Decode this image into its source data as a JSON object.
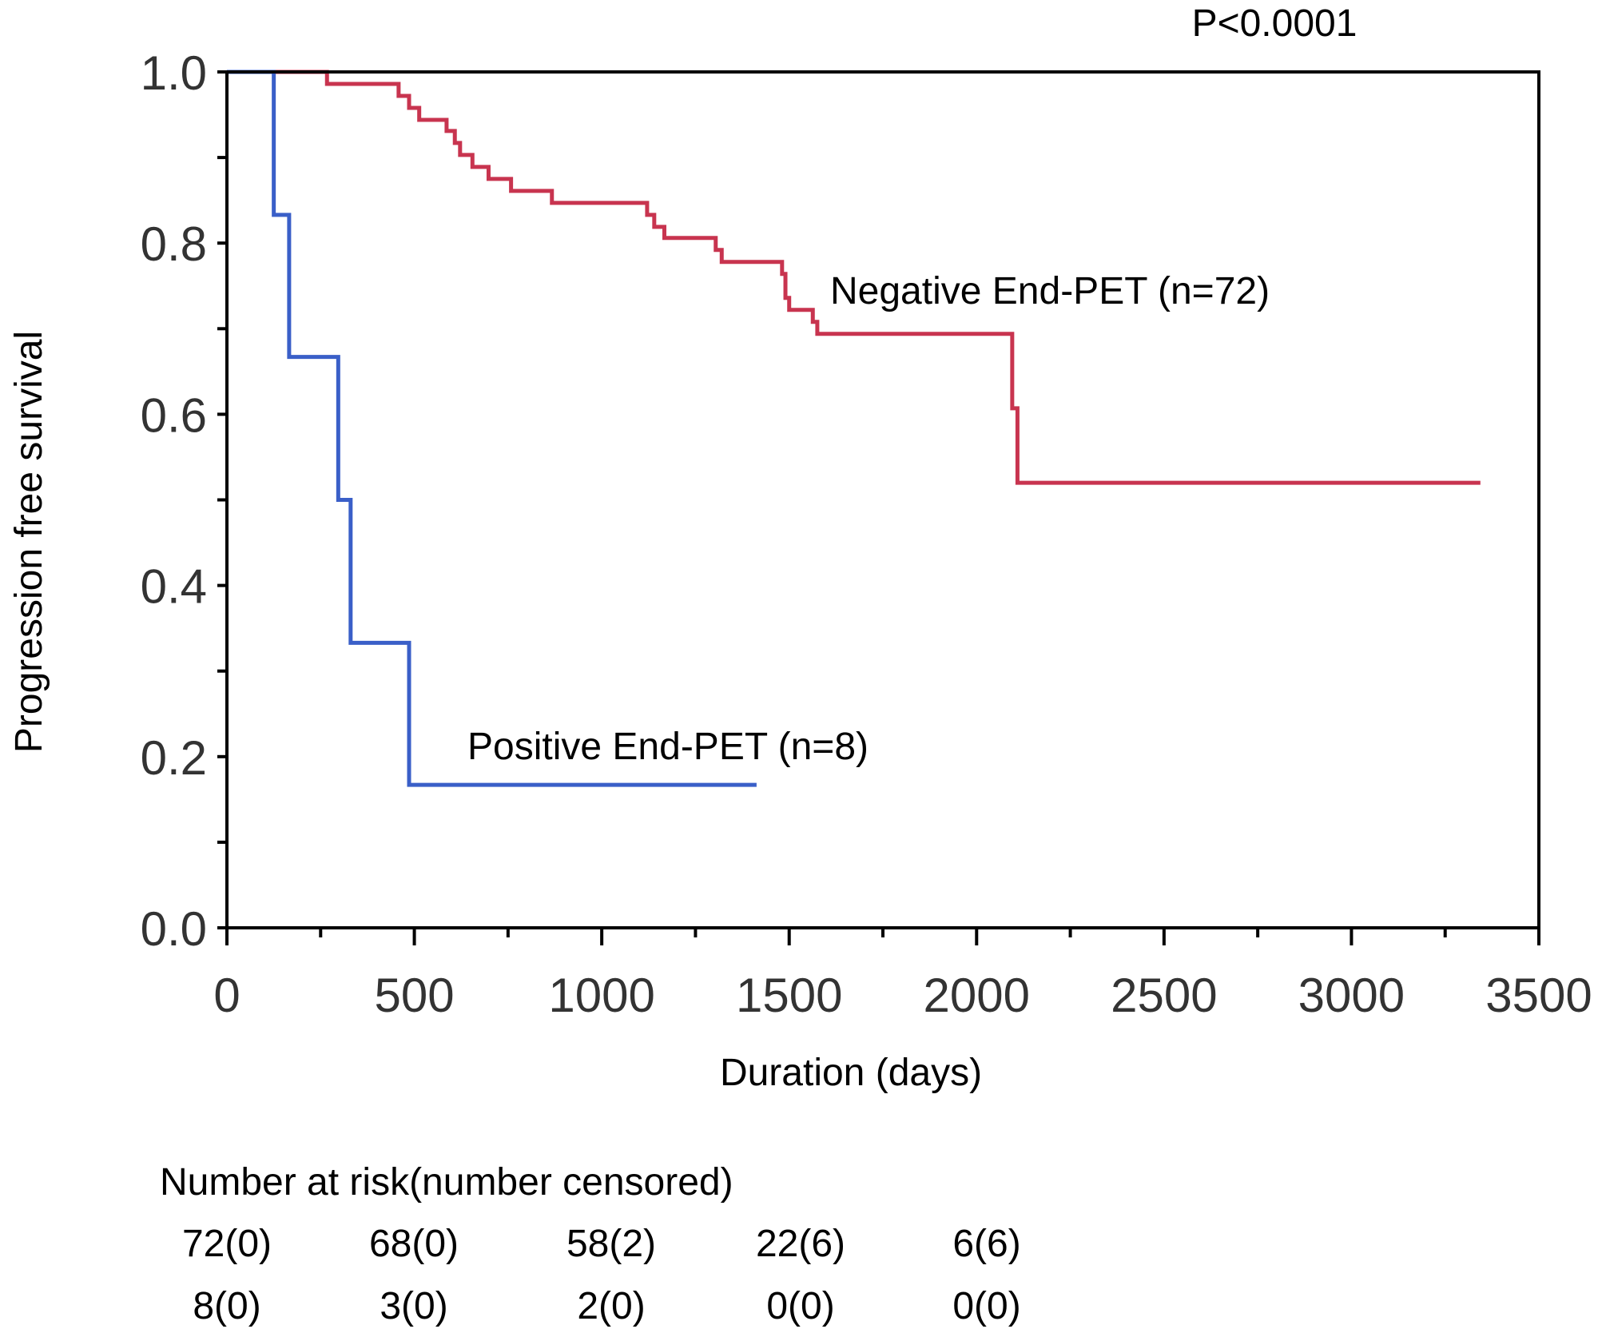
{
  "chart_data": {
    "type": "line",
    "step": true,
    "xlabel": "Duration (days)",
    "ylabel": "Progression free survival",
    "xlim": [
      0,
      3500
    ],
    "ylim": [
      0,
      1.0
    ],
    "xticks": [
      "0",
      "500",
      "1000",
      "1500",
      "2000",
      "2500",
      "3000",
      "3500"
    ],
    "yticks": [
      "0.0",
      "0.2",
      "0.4",
      "0.6",
      "0.8",
      "1.0"
    ],
    "grid": false,
    "annotation": "P<0.0001",
    "series": [
      {
        "name": "Negative End-PET (n=72)",
        "color": "#c8344f",
        "x": [
          0,
          267,
          458,
          486,
          513,
          586,
          608,
          622,
          655,
          698,
          758,
          867,
          1121,
          1140,
          1167,
          1304,
          1320,
          1481,
          1490,
          1500,
          1563,
          1575,
          2095,
          2109,
          3344
        ],
        "y": [
          1.0,
          0.986,
          0.972,
          0.958,
          0.944,
          0.931,
          0.917,
          0.903,
          0.889,
          0.875,
          0.861,
          0.847,
          0.833,
          0.819,
          0.806,
          0.792,
          0.778,
          0.764,
          0.736,
          0.722,
          0.708,
          0.694,
          0.607,
          0.52,
          0.52
        ]
      },
      {
        "name": "Positive End-PET (n=8)",
        "color": "#3a5fc8",
        "x": [
          0,
          125,
          166,
          297,
          330,
          486,
          1413
        ],
        "y": [
          1.0,
          0.833,
          0.667,
          0.5,
          0.333,
          0.167,
          0.167
        ]
      }
    ],
    "risk_table": {
      "title": "Number at risk(number censored)",
      "rows": [
        [
          "72(0)",
          "68(0)",
          "58(2)",
          "22(6)",
          "6(6)"
        ],
        [
          "8(0)",
          "3(0)",
          "2(0)",
          "0(0)",
          "0(0)"
        ]
      ]
    }
  }
}
